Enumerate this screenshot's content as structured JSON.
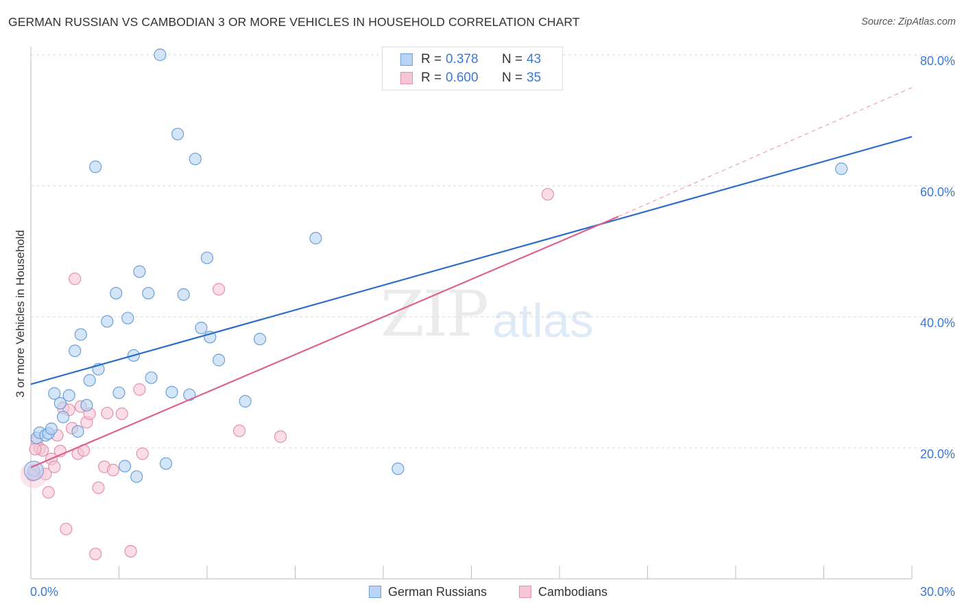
{
  "title": "GERMAN RUSSIAN VS CAMBODIAN 3 OR MORE VEHICLES IN HOUSEHOLD CORRELATION CHART",
  "source": "Source: ZipAtlas.com",
  "watermark": {
    "zip": "ZIP",
    "atlas": "atlas"
  },
  "legend_top": {
    "rows": [
      {
        "r_label": "R =",
        "r_value": "0.378",
        "n_label": "N =",
        "n_value": "43"
      },
      {
        "r_label": "R =",
        "r_value": "0.600",
        "n_label": "N =",
        "n_value": "35"
      }
    ]
  },
  "legend_bottom": {
    "items": [
      "German Russians",
      "Cambodians"
    ]
  },
  "colors": {
    "blue_fill": "#b8d3f3",
    "blue_stroke": "#6a9fd8",
    "blue_line": "#2a6ec9",
    "pink_fill": "#f7c6d6",
    "pink_stroke": "#e490ad",
    "pink_line": "#e0608d",
    "axis_text": "#3a78d6",
    "grid": "#d9d9d9"
  },
  "chart_data": {
    "type": "scatter",
    "title": "GERMAN RUSSIAN VS CAMBODIAN 3 OR MORE VEHICLES IN HOUSEHOLD CORRELATION CHART",
    "xlabel": "",
    "ylabel": "3 or more Vehicles in Household",
    "xlim": [
      0,
      30
    ],
    "ylim": [
      0,
      80
    ],
    "x_tick_labels": [
      "0.0%",
      "30.0%"
    ],
    "y_ticks": [
      20,
      40,
      60,
      80
    ],
    "y_tick_labels": [
      "20.0%",
      "40.0%",
      "60.0%",
      "80.0%"
    ],
    "grid": true,
    "legend_placement": "top-center",
    "series": [
      {
        "name": "German Russians",
        "points": [
          [
            0.1,
            16.5
          ],
          [
            0.2,
            21.5
          ],
          [
            0.3,
            22.3
          ],
          [
            0.5,
            21.9
          ],
          [
            0.6,
            22.2
          ],
          [
            0.7,
            22.9
          ],
          [
            0.8,
            28.3
          ],
          [
            1.0,
            26.8
          ],
          [
            1.1,
            24.7
          ],
          [
            1.3,
            28.0
          ],
          [
            1.5,
            34.8
          ],
          [
            1.6,
            22.5
          ],
          [
            1.7,
            37.3
          ],
          [
            1.9,
            26.5
          ],
          [
            2.0,
            30.3
          ],
          [
            2.2,
            62.9
          ],
          [
            2.3,
            32.0
          ],
          [
            2.6,
            39.3
          ],
          [
            2.9,
            43.6
          ],
          [
            3.0,
            28.4
          ],
          [
            3.2,
            17.2
          ],
          [
            3.3,
            39.8
          ],
          [
            3.5,
            34.1
          ],
          [
            3.6,
            15.6
          ],
          [
            3.7,
            46.9
          ],
          [
            4.0,
            43.6
          ],
          [
            4.1,
            30.7
          ],
          [
            4.4,
            80.0
          ],
          [
            4.6,
            17.6
          ],
          [
            4.8,
            28.5
          ],
          [
            5.0,
            67.9
          ],
          [
            5.2,
            43.4
          ],
          [
            5.4,
            28.1
          ],
          [
            5.6,
            64.1
          ],
          [
            5.8,
            38.3
          ],
          [
            6.0,
            49.0
          ],
          [
            6.1,
            36.9
          ],
          [
            6.4,
            33.4
          ],
          [
            7.3,
            27.1
          ],
          [
            7.8,
            36.6
          ],
          [
            9.7,
            52.0
          ],
          [
            12.5,
            16.8
          ],
          [
            27.6,
            62.6
          ]
        ]
      },
      {
        "name": "Cambodians",
        "points": [
          [
            0.1,
            15.9
          ],
          [
            0.2,
            21.1
          ],
          [
            0.3,
            19.9
          ],
          [
            0.4,
            19.6
          ],
          [
            0.5,
            16.0
          ],
          [
            0.6,
            13.2
          ],
          [
            0.7,
            18.3
          ],
          [
            0.8,
            17.1
          ],
          [
            0.9,
            21.9
          ],
          [
            1.0,
            19.5
          ],
          [
            1.1,
            26.1
          ],
          [
            1.2,
            7.6
          ],
          [
            1.3,
            25.8
          ],
          [
            1.4,
            23.0
          ],
          [
            1.5,
            45.8
          ],
          [
            1.6,
            19.1
          ],
          [
            1.7,
            26.3
          ],
          [
            1.8,
            19.6
          ],
          [
            1.9,
            23.9
          ],
          [
            2.0,
            25.2
          ],
          [
            2.2,
            3.8
          ],
          [
            2.3,
            13.9
          ],
          [
            2.5,
            17.1
          ],
          [
            2.6,
            25.3
          ],
          [
            2.8,
            16.6
          ],
          [
            3.1,
            25.2
          ],
          [
            3.4,
            4.2
          ],
          [
            3.7,
            28.9
          ],
          [
            3.8,
            19.1
          ],
          [
            6.4,
            44.2
          ],
          [
            7.1,
            22.6
          ],
          [
            8.5,
            21.7
          ],
          [
            17.6,
            58.7
          ],
          [
            0.05,
            15.8
          ],
          [
            0.15,
            19.8
          ]
        ]
      }
    ],
    "trend_lines": [
      {
        "name": "German Russians",
        "from": [
          0,
          29.7
        ],
        "to": [
          30,
          67.5
        ]
      },
      {
        "name": "Cambodians",
        "from": [
          0,
          17.0
        ],
        "to": [
          20,
          55.3
        ],
        "dashed_extension_to": [
          30,
          75.0
        ]
      }
    ]
  }
}
